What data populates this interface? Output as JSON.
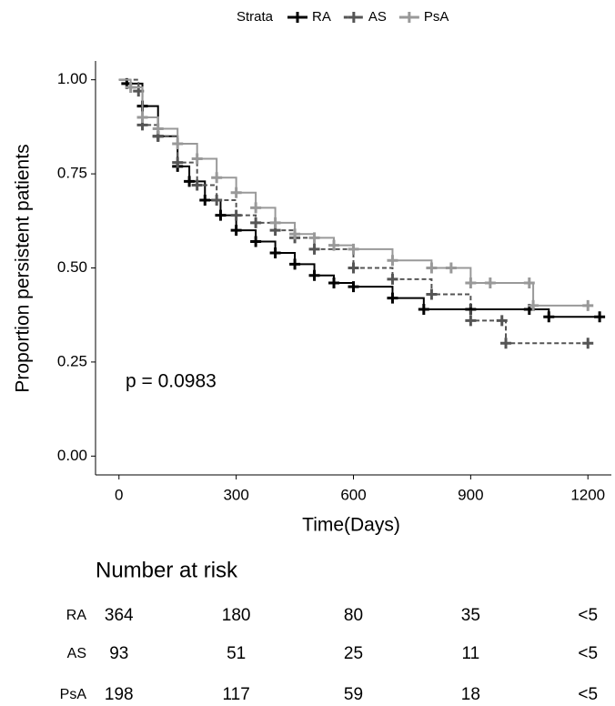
{
  "chart_data": {
    "type": "line",
    "step": "post",
    "ylabel": "Proportion persistent patients",
    "xlabel": "Time(Days)",
    "legend_title": "Strata",
    "legend_position": "top",
    "annotation": "p = 0.0983",
    "xlim": [
      -60,
      1260
    ],
    "ylim": [
      -0.05,
      1.05
    ],
    "xticks": [
      0,
      300,
      600,
      900,
      1200
    ],
    "yticks": [
      {
        "value": 0,
        "label": "0.00"
      },
      {
        "value": 0.25,
        "label": "0.25"
      },
      {
        "value": 0.5,
        "label": "0.50"
      },
      {
        "value": 0.75,
        "label": "0.75"
      },
      {
        "value": 1,
        "label": "1.00"
      }
    ],
    "series": [
      {
        "name": "RA",
        "color": "#000000",
        "dash": "none",
        "x": [
          0,
          20,
          60,
          100,
          150,
          180,
          220,
          260,
          300,
          350,
          400,
          450,
          500,
          550,
          600,
          700,
          780,
          900,
          1050,
          1100,
          1230
        ],
        "values": [
          1.0,
          0.99,
          0.93,
          0.85,
          0.77,
          0.73,
          0.68,
          0.64,
          0.6,
          0.57,
          0.54,
          0.51,
          0.48,
          0.46,
          0.45,
          0.42,
          0.39,
          0.39,
          0.39,
          0.37,
          0.37
        ]
      },
      {
        "name": "AS",
        "color": "#555555",
        "dash": "5,3",
        "x": [
          0,
          50,
          60,
          100,
          150,
          200,
          250,
          300,
          350,
          400,
          450,
          500,
          600,
          700,
          800,
          900,
          980,
          990,
          1200
        ],
        "values": [
          1.0,
          0.97,
          0.88,
          0.85,
          0.78,
          0.72,
          0.68,
          0.64,
          0.62,
          0.6,
          0.58,
          0.55,
          0.5,
          0.47,
          0.43,
          0.36,
          0.36,
          0.3,
          0.3
        ]
      },
      {
        "name": "PsA",
        "color": "#999999",
        "dash": "none",
        "x": [
          0,
          30,
          60,
          100,
          150,
          200,
          250,
          300,
          350,
          400,
          450,
          500,
          550,
          600,
          700,
          800,
          850,
          900,
          950,
          1050,
          1060,
          1200
        ],
        "values": [
          1.0,
          0.98,
          0.9,
          0.87,
          0.83,
          0.79,
          0.74,
          0.7,
          0.66,
          0.62,
          0.59,
          0.58,
          0.56,
          0.55,
          0.52,
          0.5,
          0.5,
          0.46,
          0.46,
          0.46,
          0.4,
          0.4
        ]
      }
    ],
    "risk_table": {
      "title": "Number at risk",
      "rows": [
        {
          "name": "RA",
          "counts": [
            364,
            180,
            80,
            35,
            "<5"
          ]
        },
        {
          "name": "AS",
          "counts": [
            93,
            51,
            25,
            11,
            "<5"
          ]
        },
        {
          "name": "PsA",
          "counts": [
            198,
            117,
            59,
            18,
            "<5"
          ]
        }
      ]
    }
  }
}
